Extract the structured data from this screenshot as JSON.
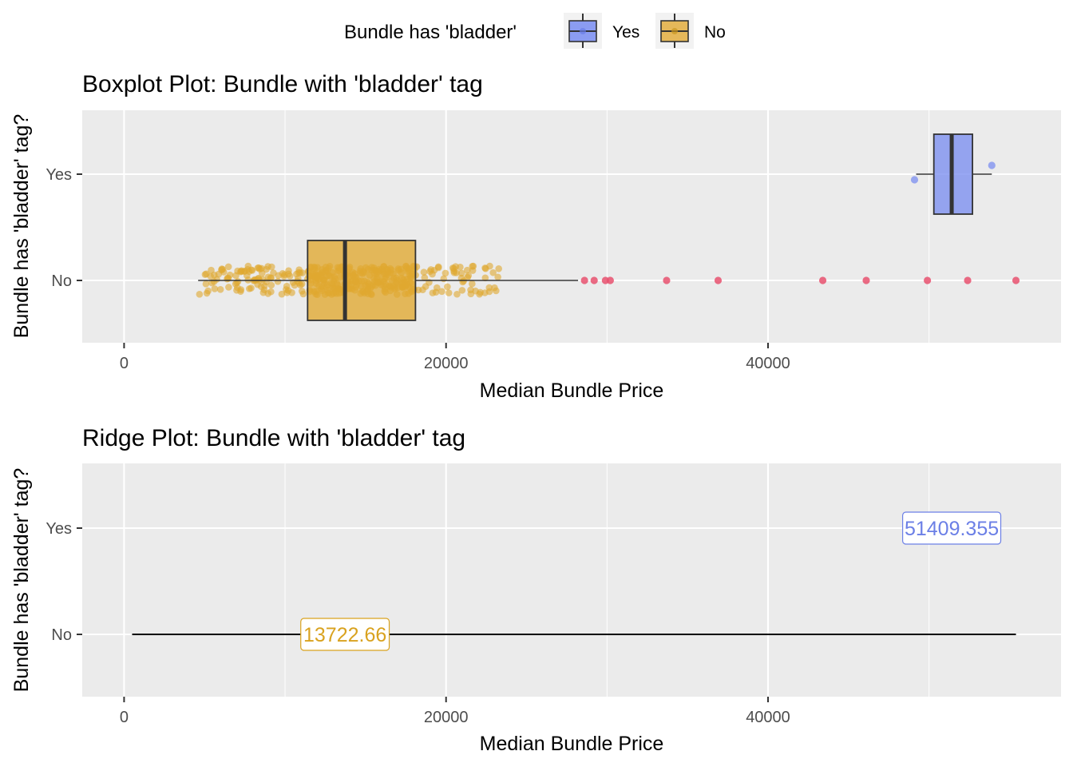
{
  "legend": {
    "title": "Bundle has 'bladder'",
    "items": [
      {
        "label": "Yes",
        "color": "#7b8ef0"
      },
      {
        "label": "No",
        "color": "#e0a830"
      }
    ]
  },
  "chart_data": [
    {
      "type": "boxplot",
      "title": "Boxplot Plot: Bundle with 'bladder' tag",
      "xlabel": "Median Bundle Price",
      "ylabel": "Bundle has 'bladder' tag?",
      "categories": [
        "Yes",
        "No"
      ],
      "xlim": [
        -2600,
        58200
      ],
      "xticks": [
        0,
        20000,
        40000
      ],
      "xtick_labels": [
        "0",
        "20000",
        "40000"
      ],
      "series": [
        {
          "name": "Yes",
          "color": "#7b8ef0",
          "box": {
            "whisker_low": 49200,
            "q1": 50300,
            "median": 51409.355,
            "q3": 52700,
            "whisker_high": 53900
          },
          "points": [
            49100,
            53900
          ]
        },
        {
          "name": "No",
          "color": "#e0a830",
          "box": {
            "whisker_low": 4600,
            "q1": 11400,
            "median": 13722.66,
            "q3": 18100,
            "whisker_high": 28200
          },
          "outliers": [
            28600,
            29200,
            29900,
            30200,
            33700,
            36900,
            43400,
            46100,
            49900,
            52400,
            55400
          ],
          "outlier_color": "#e8516f"
        }
      ],
      "grid": true
    },
    {
      "type": "ridge",
      "title": "Ridge Plot: Bundle with 'bladder' tag",
      "xlabel": "Median Bundle Price",
      "ylabel": "Bundle has 'bladder' tag?",
      "categories": [
        "Yes",
        "No"
      ],
      "xlim": [
        -2600,
        58200
      ],
      "xticks": [
        0,
        20000,
        40000
      ],
      "xtick_labels": [
        "0",
        "20000",
        "40000"
      ],
      "series": [
        {
          "name": "Yes",
          "label_value": "51409.355",
          "x": 51409.355,
          "color": "#6b7fe6"
        },
        {
          "name": "No",
          "label_value": "13722.66",
          "x": 13722.66,
          "color": "#d9a21f",
          "line_range": [
            500,
            55400
          ]
        }
      ],
      "grid": true
    }
  ]
}
